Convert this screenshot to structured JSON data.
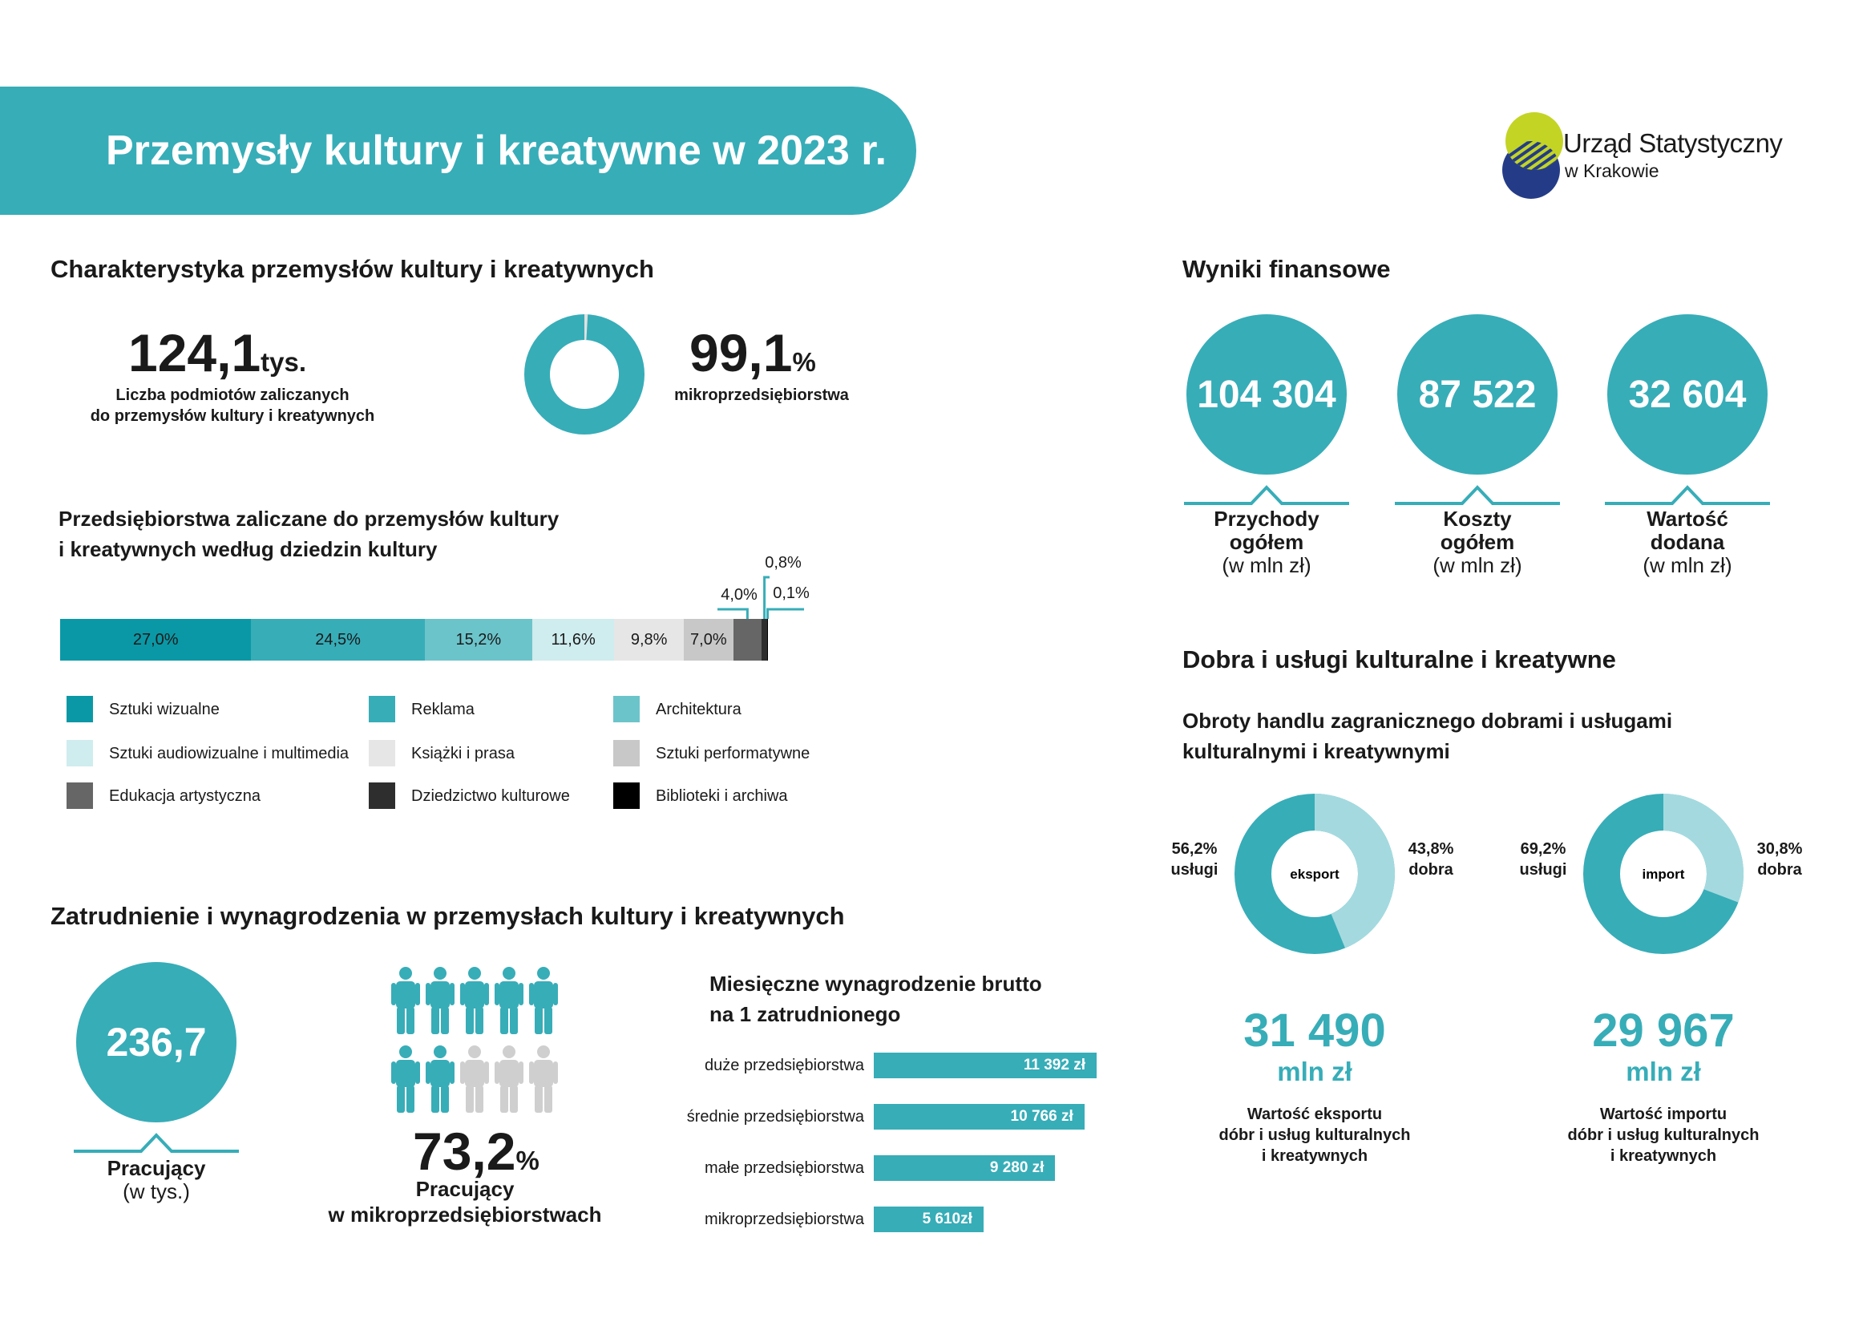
{
  "header": {
    "title": "Przemysły kultury i kreatywne w 2023 r.",
    "logo_line1": "Urząd Statystyczny",
    "logo_line2": "w Krakowie"
  },
  "characteristics": {
    "heading": "Charakterystyka przemysłów kultury i kreatywnych",
    "entities_value": "124,1",
    "entities_unit": "tys.",
    "entities_caption_1": "Liczba podmiotów zaliczanych",
    "entities_caption_2": "do przemysłów kultury i kreatywnych",
    "micro_value": "99,1",
    "micro_unit": "%",
    "micro_caption": "mikroprzedsiębiorstwa",
    "micro_share": 99.1
  },
  "domains": {
    "heading_1": "Przedsiębiorstwa zaliczane do przemysłów kultury",
    "heading_2": "i kreatywnych według dziedzin kultury"
  },
  "finance": {
    "heading": "Wyniki finansowe",
    "items": [
      {
        "value": "104 304",
        "label_1": "Przychody",
        "label_2": "ogółem",
        "unit": "(w mln zł)"
      },
      {
        "value": "87 522",
        "label_1": "Koszty",
        "label_2": "ogółem",
        "unit": "(w mln zł)"
      },
      {
        "value": "32 604",
        "label_1": "Wartość",
        "label_2": "dodana",
        "unit": "(w mln zł)"
      }
    ]
  },
  "goods": {
    "heading": "Dobra i usługi kulturalne i kreatywne",
    "subheading_1": "Obroty handlu zagranicznego dobrami i usługami",
    "subheading_2": "kulturalnymi i kreatywnymi",
    "export": {
      "center": "eksport",
      "services_pct": "56,2%",
      "services_label": "usługi",
      "goods_pct": "43,8%",
      "goods_label": "dobra",
      "value": "31 490",
      "unit": "mln zł",
      "caption_1": "Wartość eksportu",
      "caption_2": "dóbr i usług kulturalnych",
      "caption_3": "i kreatywnych"
    },
    "import": {
      "center": "import",
      "services_pct": "69,2%",
      "services_label": "usługi",
      "goods_pct": "30,8%",
      "goods_label": "dobra",
      "value": "29 967",
      "unit": "mln zł",
      "caption_1": "Wartość importu",
      "caption_2": "dóbr i usług kulturalnych",
      "caption_3": "i kreatywnych"
    }
  },
  "employment": {
    "heading": "Zatrudnienie i wynagrodzenia w przemysłach kultury i kreatywnych",
    "workers_value": "236,7",
    "workers_label": "Pracujący",
    "workers_unit": "(w tys.)",
    "micro_value": "73,2",
    "micro_unit": "%",
    "micro_label_1": "Pracujący",
    "micro_label_2": "w mikroprzedsiębiorstwach",
    "icons_highlighted": 7,
    "icons_total": 10,
    "wages_heading_1": "Miesięczne wynagrodzenie brutto",
    "wages_heading_2": "na 1 zatrudnionego"
  },
  "colors": {
    "accent": "#37adb8",
    "dark_teal": "#0a98a6",
    "light_teal": "#a4dadf",
    "icon_grey": "#cfcfcf"
  },
  "chart_data": [
    {
      "type": "bar",
      "orientation": "horizontal-stacked",
      "categories": [
        "Sztuki wizualne",
        "Reklama",
        "Architektura",
        "Sztuki audiowizualne i multimedia",
        "Książki i prasa",
        "Sztuki performatywne",
        "Edukacja artystyczna",
        "Dziedzictwo kulturowe",
        "Biblioteki i archiwa"
      ],
      "values": [
        27.0,
        24.5,
        15.2,
        11.6,
        9.8,
        7.0,
        4.0,
        0.8,
        0.1
      ],
      "labels": [
        "27,0%",
        "24,5%",
        "15,2%",
        "11,6%",
        "9,8%",
        "7,0%",
        "4,0%",
        "0,8%",
        "0,1%"
      ],
      "colors": [
        "#0a98a6",
        "#37adb8",
        "#6cc4cb",
        "#cfecee",
        "#e6e6e6",
        "#c8c8c8",
        "#666666",
        "#2e2e2e",
        "#000000"
      ],
      "legend": "bottom"
    },
    {
      "type": "bar",
      "orientation": "horizontal",
      "categories": [
        "duże przedsiębiorstwa",
        "średnie przedsiębiorstwa",
        "małe przedsiębiorstwa",
        "mikroprzedsiębiorstwa"
      ],
      "values": [
        11392,
        10766,
        9280,
        5610
      ],
      "labels": [
        "11 392 zł",
        "10 766 zł",
        "9 280 zł",
        "5 610zł"
      ],
      "xlim": [
        0,
        11392
      ]
    },
    {
      "type": "pie",
      "categories": [
        "usługi",
        "dobra"
      ],
      "values": [
        56.2,
        43.8
      ],
      "labels": [
        "56,2%",
        "43,8%"
      ]
    },
    {
      "type": "pie",
      "categories": [
        "usługi",
        "dobra"
      ],
      "values": [
        69.2,
        30.8
      ],
      "labels": [
        "69,2%",
        "30,8%"
      ]
    }
  ]
}
